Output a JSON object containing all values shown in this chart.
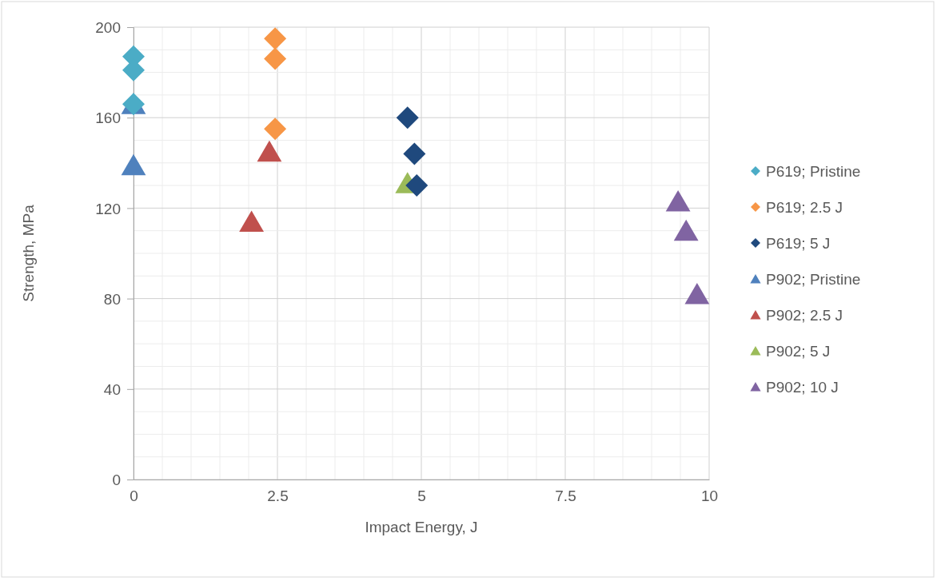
{
  "chart_data": {
    "type": "scatter",
    "xlabel": "Impact Energy, J",
    "ylabel": "Strength, MPa",
    "xlim": [
      0,
      10
    ],
    "xticks": [
      0,
      2.5,
      5,
      7.5,
      10
    ],
    "ylim": [
      0,
      200
    ],
    "yticks": [
      0,
      40,
      80,
      120,
      160,
      200
    ],
    "grid": true,
    "legend": "right",
    "series": [
      {
        "name": "P619; Pristine",
        "color": "#4bacc6",
        "marker": "diamond",
        "x": [
          0,
          0,
          0
        ],
        "values": [
          187,
          181,
          166
        ]
      },
      {
        "name": "P619; 2.5 J",
        "color": "#f79646",
        "marker": "diamond",
        "x": [
          2.46,
          2.46,
          2.46
        ],
        "values": [
          195,
          186,
          155
        ]
      },
      {
        "name": "P619; 5 J",
        "color": "#1f497d",
        "marker": "diamond",
        "x": [
          4.76,
          4.88,
          4.92
        ],
        "values": [
          160,
          144,
          130
        ]
      },
      {
        "name": "P902; Pristine",
        "color": "#4f81bd",
        "marker": "triangle",
        "x": [
          0,
          0
        ],
        "values": [
          166,
          139
        ]
      },
      {
        "name": "P902; 2.5 J",
        "color": "#c0504d",
        "marker": "triangle",
        "x": [
          2.36,
          2.05
        ],
        "values": [
          145,
          114
        ]
      },
      {
        "name": "P902; 5 J",
        "color": "#9bbb59",
        "marker": "triangle",
        "x": [
          4.76
        ],
        "values": [
          131
        ]
      },
      {
        "name": "P902; 10 J",
        "color": "#8064a2",
        "marker": "triangle",
        "x": [
          9.46,
          9.6,
          9.79
        ],
        "values": [
          123,
          110,
          82
        ]
      }
    ]
  }
}
